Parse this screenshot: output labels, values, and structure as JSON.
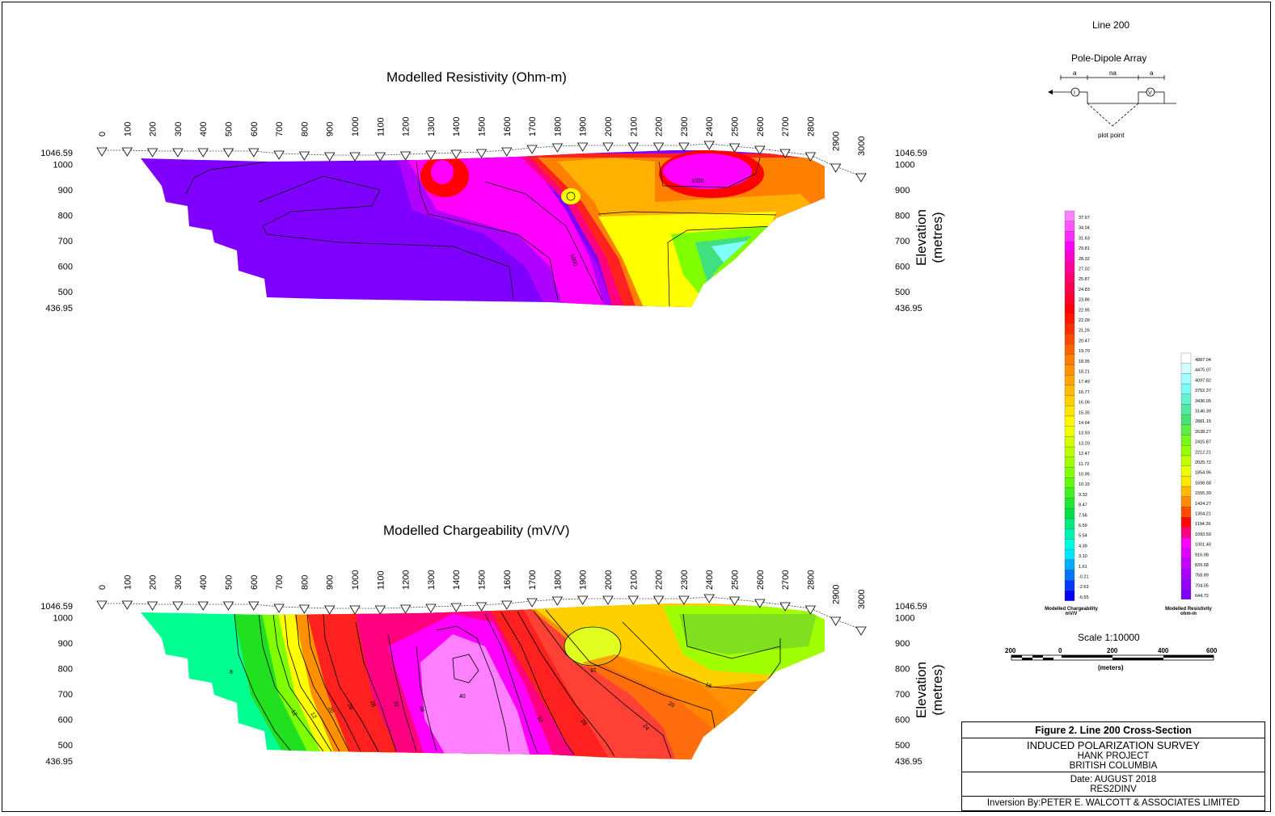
{
  "line_title": "Line 200",
  "array": {
    "title": "Pole-Dipole Array",
    "labels": [
      "a",
      "na",
      "a"
    ],
    "current_symbol": "I",
    "voltage_symbol": "V",
    "plot_point": "plot point"
  },
  "sections": [
    {
      "title": "Modelled Resistivity (Ohm-m)",
      "contour_labels": [
        "1000",
        "1000"
      ]
    },
    {
      "title": "Modelled Chargeability (mV/V)",
      "contour_labels": [
        "8",
        "12",
        "16",
        "20",
        "24",
        "28",
        "32",
        "36",
        "40",
        "32",
        "28",
        "24",
        "20",
        "16",
        "16"
      ]
    }
  ],
  "x_ticks": [
    "0",
    "100",
    "200",
    "300",
    "400",
    "500",
    "600",
    "700",
    "800",
    "900",
    "1000",
    "1100",
    "1200",
    "1300",
    "1400",
    "1500",
    "1600",
    "1700",
    "1800",
    "1900",
    "2000",
    "2100",
    "2200",
    "2300",
    "2400",
    "2500",
    "2600",
    "2700",
    "2800",
    "2900",
    "3000"
  ],
  "y_ticks": [
    "1046.59",
    "1000",
    "900",
    "800",
    "700",
    "600",
    "500",
    "436.95"
  ],
  "y_axis_label": "Elevation (metres)",
  "colors": {
    "purple": "#8000ff",
    "violet": "#b000ff",
    "magenta": "#ff00ff",
    "pink": "#ff80ff",
    "red": "#ff0000",
    "orange": "#ff7f00",
    "yellow": "#ffff00",
    "green": "#40e020",
    "cyan": "#00ffff",
    "blue": "#0000ff",
    "white": "#ffffff"
  },
  "legend_chargeability": {
    "values": [
      "37.97",
      "34.04",
      "31.63",
      "29.81",
      "28.32",
      "27.02",
      "25.87",
      "24.83",
      "23.86",
      "22.95",
      "22.09",
      "21.26",
      "20.47",
      "19.70",
      "18.95",
      "18.21",
      "17.49",
      "16.77",
      "16.06",
      "15.35",
      "14.64",
      "13.93",
      "13.20",
      "12.47",
      "11.72",
      "10.95",
      "10.15",
      "9.33",
      "8.47",
      "7.56",
      "6.59",
      "5.54",
      "4.39",
      "3.10",
      "1.61",
      "-0.21",
      "-2.63",
      "-6.55"
    ],
    "label_line1": "Modelled Chargeability",
    "label_line2": "mV/V"
  },
  "legend_resistivity": {
    "values": [
      "4887.04",
      "4475.07",
      "4097.82",
      "3752.37",
      "3436.05",
      "3146.39",
      "2881.15",
      "2638.27",
      "2415.87",
      "2212.21",
      "2025.72",
      "1854.95",
      "1698.58",
      "1555.39",
      "1424.27",
      "1304.21",
      "1194.26",
      "1093.59",
      "1001.40",
      "916.98",
      "839.68",
      "768.89",
      "704.05",
      "644.72"
    ],
    "label_line1": "Modelled Resistivity",
    "label_line2": "ohm-m"
  },
  "scale": {
    "title": "Scale 1:10000",
    "ticks": [
      "200",
      "0",
      "200",
      "400",
      "600"
    ],
    "unit": "(meters)"
  },
  "titleblock": {
    "figure": "Figure 2. Line 200 Cross-Section",
    "survey": "INDUCED POLARIZATION SURVEY",
    "project": "HANK PROJECT",
    "province": "BRITISH COLUMBIA",
    "date": "Date: AUGUST 2018",
    "software": "RES2DINV",
    "inversion": "Inversion By:PETER E. WALCOTT & ASSOCIATES LIMITED"
  }
}
